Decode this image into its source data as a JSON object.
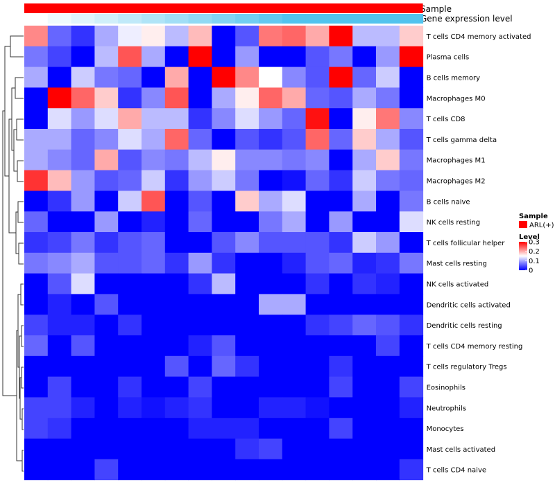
{
  "chart_data": {
    "type": "heatmap",
    "annotation_tracks": [
      "Sample",
      "Gene expression level"
    ],
    "rows": [
      "T cells CD4 memory activated",
      "Plasma cells",
      "B cells memory",
      "Macrophages M0",
      "T cells CD8",
      "T cells gamma delta",
      "Macrophages M1",
      "Macrophages M2",
      "B cells naive",
      "NK cells resting",
      "T cells follicular helper",
      "Mast cells resting",
      "NK cells activated",
      "Dendritic cells activated",
      "Dendritic cells resting",
      "T cells CD4 memory resting",
      "T cells regulatory  Tregs",
      "Eosinophils",
      "Neutrophils",
      "Monocytes",
      "Mast cells activated",
      "T cells CD4 naive"
    ],
    "values": [
      [
        0.22,
        0.06,
        0.03,
        0.1,
        0.14,
        0.16,
        0.11,
        0.19,
        0.0,
        0.05,
        0.23,
        0.24,
        0.2,
        0.3,
        0.11,
        0.11,
        0.18
      ],
      [
        0.07,
        0.04,
        0.0,
        0.11,
        0.25,
        0.1,
        0.0,
        0.3,
        0.0,
        0.09,
        0.0,
        0.0,
        0.05,
        0.07,
        0.0,
        0.09,
        0.3
      ],
      [
        0.1,
        0.0,
        0.12,
        0.07,
        0.06,
        0.0,
        0.2,
        0.0,
        0.3,
        0.22,
        0.15,
        0.08,
        0.05,
        0.3,
        0.06,
        0.12,
        0.0
      ],
      [
        0.0,
        0.3,
        0.24,
        0.18,
        0.03,
        0.08,
        0.25,
        0.0,
        0.1,
        0.16,
        0.24,
        0.2,
        0.06,
        0.05,
        0.1,
        0.07,
        0.0
      ],
      [
        0.0,
        0.13,
        0.09,
        0.13,
        0.2,
        0.11,
        0.11,
        0.03,
        0.08,
        0.13,
        0.09,
        0.06,
        0.29,
        0.0,
        0.16,
        0.23,
        0.08
      ],
      [
        0.1,
        0.1,
        0.06,
        0.08,
        0.13,
        0.1,
        0.24,
        0.06,
        0.0,
        0.05,
        0.03,
        0.05,
        0.24,
        0.06,
        0.18,
        0.1,
        0.05
      ],
      [
        0.1,
        0.08,
        0.06,
        0.2,
        0.05,
        0.08,
        0.07,
        0.11,
        0.16,
        0.08,
        0.08,
        0.07,
        0.08,
        0.0,
        0.1,
        0.18,
        0.07
      ],
      [
        0.27,
        0.19,
        0.09,
        0.05,
        0.06,
        0.12,
        0.03,
        0.09,
        0.12,
        0.07,
        0.0,
        0.01,
        0.06,
        0.03,
        0.12,
        0.07,
        0.06
      ],
      [
        0.0,
        0.03,
        0.09,
        0.0,
        0.12,
        0.25,
        0.0,
        0.05,
        0.0,
        0.18,
        0.1,
        0.13,
        0.0,
        0.0,
        0.1,
        0.0,
        0.07
      ],
      [
        0.06,
        0.0,
        0.0,
        0.09,
        0.0,
        0.02,
        0.0,
        0.06,
        0.0,
        0.0,
        0.07,
        0.1,
        0.0,
        0.09,
        0.0,
        0.0,
        0.13
      ],
      [
        0.03,
        0.04,
        0.07,
        0.03,
        0.05,
        0.06,
        0.0,
        0.0,
        0.05,
        0.08,
        0.05,
        0.05,
        0.05,
        0.03,
        0.12,
        0.09,
        0.0
      ],
      [
        0.07,
        0.08,
        0.1,
        0.05,
        0.05,
        0.06,
        0.03,
        0.09,
        0.03,
        0.0,
        0.0,
        0.02,
        0.05,
        0.06,
        0.02,
        0.03,
        0.07
      ],
      [
        0.0,
        0.05,
        0.13,
        0.0,
        0.0,
        0.0,
        0.0,
        0.03,
        0.11,
        0.0,
        0.0,
        0.0,
        0.03,
        0.0,
        0.03,
        0.02,
        0.0
      ],
      [
        0.0,
        0.02,
        0.0,
        0.05,
        0.0,
        0.0,
        0.0,
        0.0,
        0.0,
        0.0,
        0.1,
        0.1,
        0.0,
        0.0,
        0.0,
        0.0,
        0.0
      ],
      [
        0.04,
        0.02,
        0.02,
        0.0,
        0.03,
        0.0,
        0.0,
        0.0,
        0.0,
        0.0,
        0.0,
        0.0,
        0.03,
        0.04,
        0.06,
        0.05,
        0.03
      ],
      [
        0.06,
        0.0,
        0.05,
        0.0,
        0.0,
        0.0,
        0.0,
        0.02,
        0.05,
        0.0,
        0.0,
        0.0,
        0.0,
        0.0,
        0.0,
        0.04,
        0.0
      ],
      [
        0.0,
        0.0,
        0.0,
        0.0,
        0.0,
        0.0,
        0.05,
        0.0,
        0.06,
        0.03,
        0.0,
        0.0,
        0.0,
        0.03,
        0.0,
        0.0,
        0.0
      ],
      [
        0.0,
        0.04,
        0.0,
        0.0,
        0.03,
        0.0,
        0.0,
        0.04,
        0.0,
        0.0,
        0.0,
        0.0,
        0.0,
        0.04,
        0.0,
        0.0,
        0.04
      ],
      [
        0.04,
        0.04,
        0.02,
        0.0,
        0.02,
        0.01,
        0.02,
        0.03,
        0.0,
        0.0,
        0.02,
        0.02,
        0.01,
        0.0,
        0.0,
        0.0,
        0.02
      ],
      [
        0.04,
        0.03,
        0.0,
        0.0,
        0.0,
        0.0,
        0.0,
        0.02,
        0.02,
        0.02,
        0.0,
        0.0,
        0.0,
        0.04,
        0.0,
        0.0,
        0.0
      ],
      [
        0.0,
        0.0,
        0.0,
        0.0,
        0.0,
        0.0,
        0.0,
        0.0,
        0.0,
        0.03,
        0.04,
        0.0,
        0.0,
        0.0,
        0.0,
        0.0,
        0.0
      ],
      [
        0.0,
        0.0,
        0.0,
        0.04,
        0.0,
        0.0,
        0.0,
        0.0,
        0.0,
        0.0,
        0.0,
        0.0,
        0.0,
        0.0,
        0.0,
        0.0,
        0.03
      ]
    ],
    "color_scale": {
      "min": 0,
      "mid": 0.15,
      "max": 0.3,
      "low": "#0000ff",
      "mid_color": "#ffffff",
      "high": "#ff0000"
    },
    "gene_expression_gradient": {
      "low": "#ffffff",
      "high": "#52c3ee"
    },
    "sample_color": "#ff0000",
    "legend": {
      "sample_title": "Sample",
      "sample_entry": "ARL(+)",
      "level_title": "Level",
      "ticks": [
        "0.3",
        "0.2",
        "0.1",
        "0"
      ],
      "tick_values": [
        0.3,
        0.2,
        0.1,
        0
      ],
      "placement": "right"
    },
    "dendrogram": "row clustering tree on left"
  }
}
